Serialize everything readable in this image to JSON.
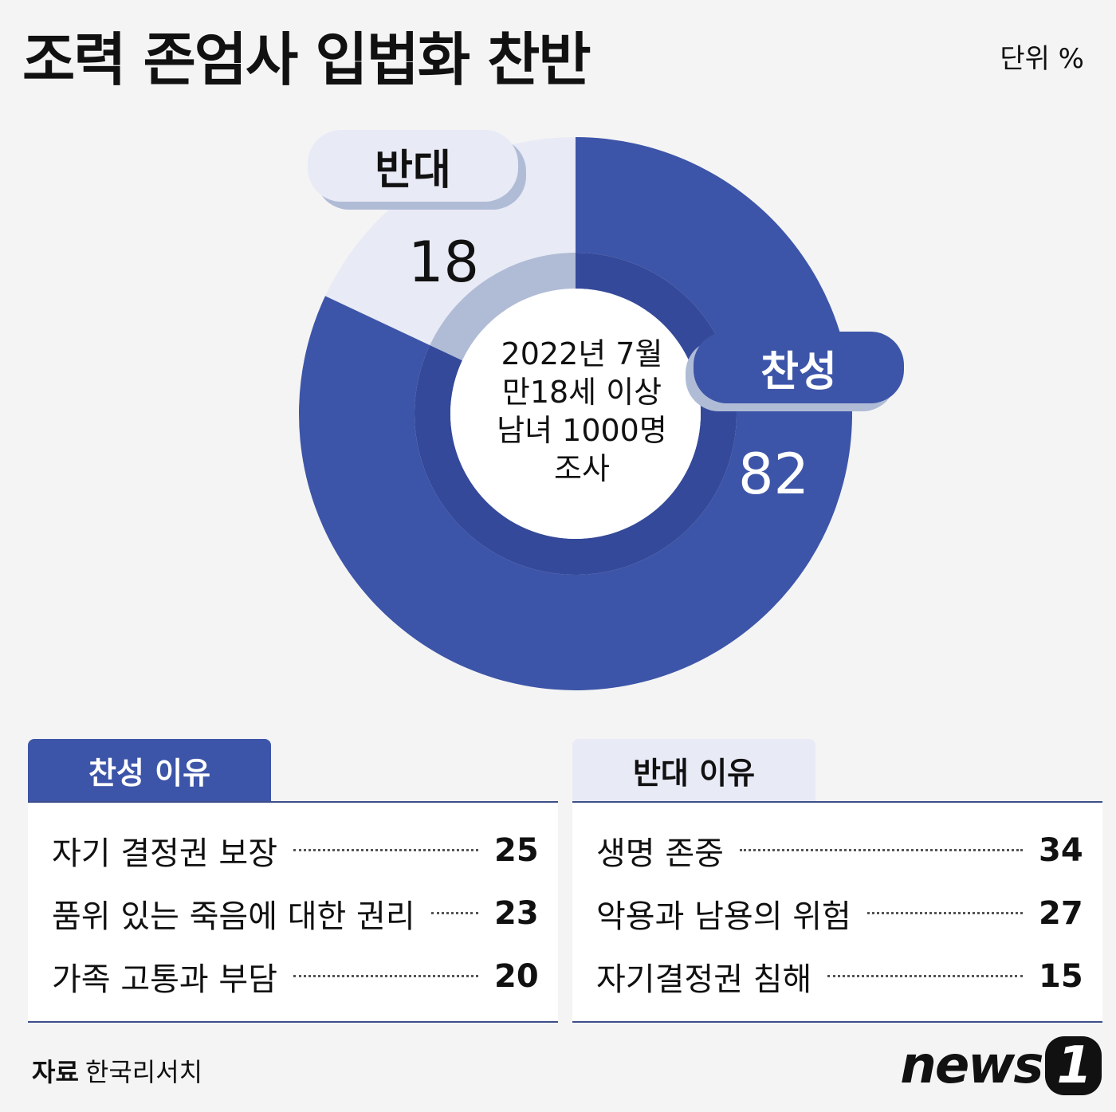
{
  "header": {
    "title": "조력 존엄사 입법화 찬반",
    "unit": "단위 %"
  },
  "colors": {
    "for": "#3d55a8",
    "for_inner": "#34499a",
    "against": "#e8eaf6",
    "against_inner": "#b0bcd6"
  },
  "chart_data": {
    "type": "pie",
    "donut": true,
    "title": "조력 존엄사 입법화 찬반",
    "categories": [
      "찬성",
      "반대"
    ],
    "values": [
      82,
      18
    ],
    "value_labels": [
      "82",
      "18"
    ],
    "center_text": [
      "2022년 7월",
      "만18세 이상",
      "남녀 1000명",
      "조사"
    ]
  },
  "reasons": {
    "for": {
      "title": "찬성 이유",
      "items": [
        {
          "label": "자기 결정권 보장",
          "value": "25"
        },
        {
          "label": "품위 있는 죽음에 대한 권리",
          "value": "23"
        },
        {
          "label": "가족 고통과 부담",
          "value": "20"
        }
      ]
    },
    "against": {
      "title": "반대 이유",
      "items": [
        {
          "label": "생명 존중",
          "value": "34"
        },
        {
          "label": "악용과 남용의 위험",
          "value": "27"
        },
        {
          "label": "자기결정권 침해",
          "value": "15"
        }
      ]
    }
  },
  "footer": {
    "source_label": "자료",
    "source": "한국리서치",
    "logo": "news",
    "logo_mark": "1"
  }
}
